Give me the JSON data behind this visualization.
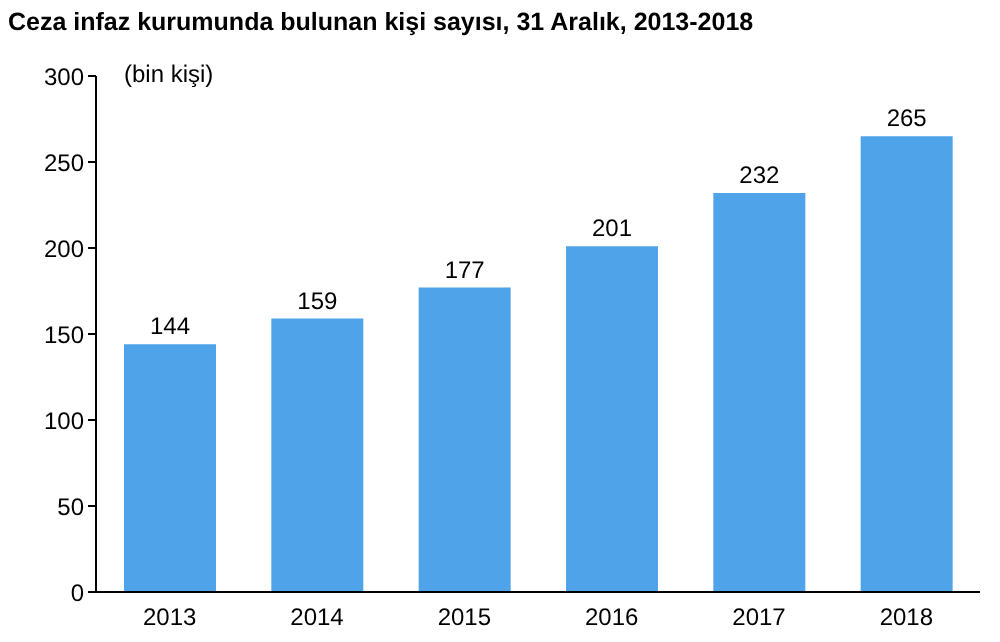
{
  "chart_data": {
    "type": "bar",
    "title": "Ceza infaz kurumunda bulunan kişi sayısı, 31 Aralık, 2013-2018",
    "ylabel": "(bin kişi)",
    "categories": [
      "2013",
      "2014",
      "2015",
      "2016",
      "2017",
      "2018"
    ],
    "values": [
      144,
      159,
      177,
      201,
      232,
      265
    ],
    "color": "#4fa3e8",
    "ylim": [
      0,
      300
    ],
    "yticks": [
      0,
      50,
      100,
      150,
      200,
      250,
      300
    ],
    "grid": false,
    "data_labels": true
  }
}
